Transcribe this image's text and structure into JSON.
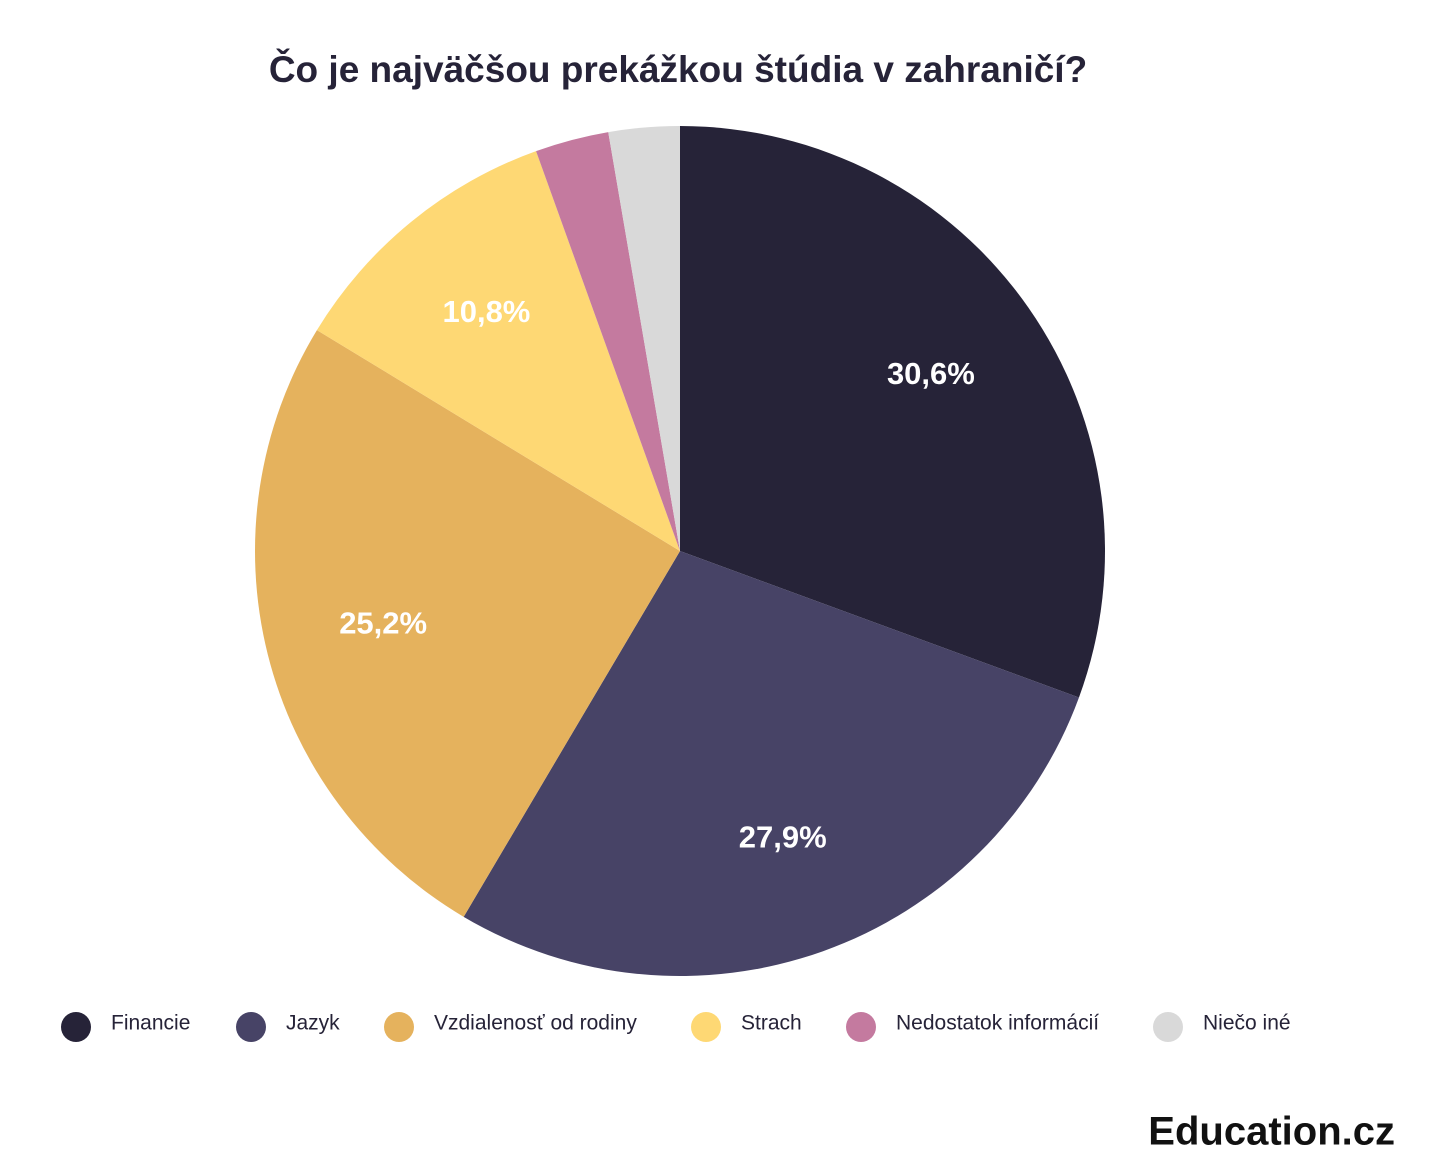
{
  "chart_data": {
    "type": "pie",
    "title": "Čo je najväčšou prekážkou štúdia v zahraničí?",
    "categories": [
      "Financie",
      "Jazyk",
      "Vzdialenosť od rodiny",
      "Strach",
      "Nedostatok informácií",
      "Niečo iné"
    ],
    "values": [
      30.6,
      27.9,
      25.2,
      10.8,
      2.8,
      2.7
    ],
    "value_labels": [
      "30,6%",
      "27,9%",
      "25,2%",
      "10,8%",
      null,
      null
    ],
    "colors": [
      "#262338",
      "#474366",
      "#e5b25d",
      "#fed874",
      "#c47a9f",
      "#d9d9d9"
    ],
    "legend": "bottom"
  },
  "logo": "Education.cz"
}
